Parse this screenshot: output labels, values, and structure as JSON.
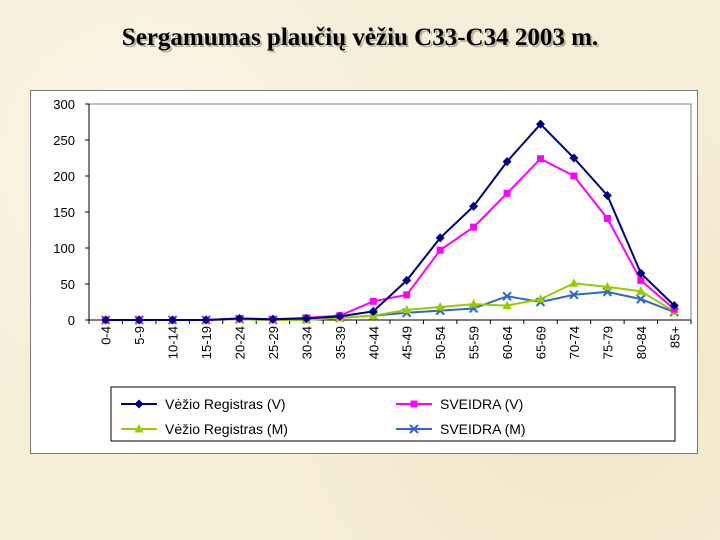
{
  "title": "Sergamumas plaučių vėžiu C33-C34 2003 m.",
  "chart_data": {
    "type": "line",
    "title": "Sergamumas plaučių vėžiu C33-C34 2003 m.",
    "xlabel": "",
    "ylabel": "",
    "categories": [
      "0-4",
      "5-9",
      "10-14",
      "15-19",
      "20-24",
      "25-29",
      "30-34",
      "35-39",
      "40-44",
      "45-49",
      "50-54",
      "55-59",
      "60-64",
      "65-69",
      "70-74",
      "75-79",
      "80-84",
      "85+"
    ],
    "ylim": [
      0,
      300
    ],
    "yticks": [
      0,
      50,
      100,
      150,
      200,
      250,
      300
    ],
    "grid": false,
    "legend_position": "bottom",
    "series": [
      {
        "name": "Vėžio Registras (V)",
        "color": "#00007f",
        "marker": "diamond",
        "values": [
          0,
          0,
          0,
          0,
          2,
          1,
          2,
          5,
          12,
          55,
          114,
          158,
          220,
          272,
          225,
          173,
          65,
          20
        ]
      },
      {
        "name": "SVEIDRA (V)",
        "color": "#ff00ff",
        "marker": "square",
        "values": [
          0,
          0,
          0,
          0,
          2,
          1,
          3,
          6,
          26,
          35,
          97,
          129,
          176,
          224,
          200,
          141,
          55,
          15
        ]
      },
      {
        "name": "Vėžio Registras (M)",
        "color": "#99cc00",
        "marker": "triangle",
        "values": [
          0,
          0,
          0,
          0,
          1,
          0,
          0,
          3,
          6,
          14,
          18,
          22,
          20,
          29,
          51,
          46,
          40,
          12
        ]
      },
      {
        "name": "SVEIDRA (M)",
        "color": "#3366cc",
        "marker": "x",
        "values": [
          0,
          0,
          0,
          0,
          1,
          0,
          1,
          3,
          6,
          10,
          13,
          16,
          33,
          25,
          35,
          39,
          29,
          11
        ]
      }
    ]
  }
}
